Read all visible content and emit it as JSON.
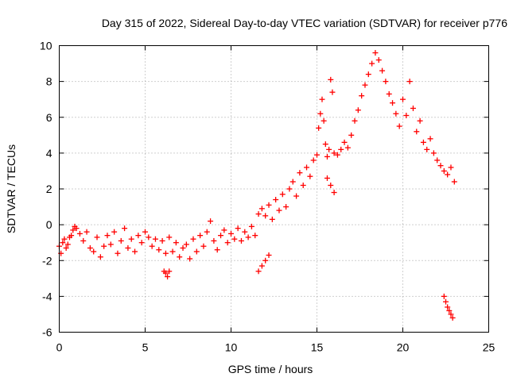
{
  "chart_data": {
    "type": "scatter",
    "title": "Day 315 of 2022, Sidereal Day-to-day VTEC variation (SDTVAR) for receiver p776",
    "xlabel": "GPS time / hours",
    "ylabel": "SDTVAR / TECUs",
    "xlim": [
      0,
      25
    ],
    "ylim": [
      -6,
      10
    ],
    "xticks": [
      0,
      5,
      10,
      15,
      20,
      25
    ],
    "yticks": [
      -6,
      -4,
      -2,
      0,
      2,
      4,
      6,
      8,
      10
    ],
    "xtick_labels": [
      "0",
      "5",
      "10",
      "15",
      "20",
      "25"
    ],
    "ytick_labels": [
      "-6",
      "-4",
      "-2",
      "0",
      "2",
      "4",
      "6",
      "8",
      "10"
    ],
    "grid": true,
    "marker": "+",
    "color": "#ff0000",
    "series": [
      {
        "name": "SDTVAR",
        "x": [
          0.0,
          0.1,
          0.2,
          0.3,
          0.4,
          0.5,
          0.6,
          0.7,
          0.8,
          0.9,
          1.0,
          1.2,
          1.4,
          1.6,
          1.8,
          2.0,
          2.2,
          2.4,
          2.6,
          2.8,
          3.0,
          3.2,
          3.4,
          3.6,
          3.8,
          4.0,
          4.2,
          4.4,
          4.6,
          4.8,
          5.0,
          5.2,
          5.4,
          5.6,
          5.8,
          6.0,
          6.2,
          6.4,
          6.6,
          6.8,
          7.0,
          7.2,
          7.4,
          7.6,
          7.8,
          8.0,
          8.2,
          8.4,
          8.6,
          8.8,
          9.0,
          9.2,
          9.4,
          9.6,
          9.8,
          10.0,
          10.2,
          10.4,
          10.6,
          10.8,
          11.0,
          11.2,
          11.4,
          11.6,
          11.8,
          12.0,
          12.2,
          12.4,
          12.6,
          12.8,
          13.0,
          13.2,
          13.4,
          13.6,
          13.8,
          14.0,
          14.2,
          14.4,
          14.6,
          14.8,
          15.0,
          15.1,
          15.2,
          15.3,
          15.4,
          15.5,
          15.6,
          15.7,
          15.8,
          15.9,
          16.0,
          16.2,
          16.4,
          16.6,
          16.8,
          17.0,
          17.2,
          17.4,
          17.6,
          17.8,
          18.0,
          18.2,
          18.4,
          18.6,
          18.8,
          19.0,
          19.2,
          19.4,
          19.6,
          19.8,
          20.0,
          20.2,
          20.4,
          20.6,
          20.8,
          21.0,
          21.2,
          21.4,
          21.6,
          21.8,
          22.0,
          22.2,
          22.4,
          22.6,
          22.8,
          23.0,
          6.1,
          6.2,
          6.3,
          6.4,
          11.6,
          11.8,
          12.0,
          12.2,
          22.4,
          22.5,
          22.6,
          22.7,
          22.8,
          22.9,
          15.6,
          15.8,
          16.0
        ],
        "y": [
          -1.2,
          -1.6,
          -1.0,
          -0.8,
          -1.3,
          -1.1,
          -0.7,
          -0.6,
          -0.3,
          -0.1,
          -0.2,
          -0.5,
          -0.9,
          -0.4,
          -1.3,
          -1.5,
          -0.7,
          -1.8,
          -1.2,
          -0.6,
          -1.1,
          -0.4,
          -1.6,
          -0.9,
          -0.2,
          -1.3,
          -0.8,
          -1.5,
          -0.6,
          -1.0,
          -0.4,
          -0.7,
          -1.2,
          -0.8,
          -1.4,
          -0.9,
          -1.6,
          -0.7,
          -1.5,
          -1.0,
          -1.8,
          -1.3,
          -1.1,
          -1.9,
          -0.8,
          -1.5,
          -0.6,
          -1.2,
          -0.4,
          0.2,
          -0.9,
          -1.4,
          -0.6,
          -0.3,
          -1.0,
          -0.5,
          -0.8,
          -0.2,
          -0.9,
          -0.4,
          -0.7,
          -0.1,
          -0.6,
          0.6,
          0.9,
          0.5,
          1.1,
          0.3,
          1.4,
          0.8,
          1.7,
          1.0,
          2.0,
          2.4,
          1.6,
          2.9,
          2.2,
          3.2,
          2.7,
          3.6,
          3.9,
          5.4,
          6.2,
          7.0,
          5.8,
          4.5,
          3.8,
          4.2,
          8.1,
          7.4,
          4.0,
          3.9,
          4.2,
          4.6,
          4.3,
          5.0,
          5.8,
          6.4,
          7.2,
          7.8,
          8.4,
          9.0,
          9.6,
          9.2,
          8.6,
          8.0,
          7.3,
          6.8,
          6.2,
          5.5,
          7.0,
          6.1,
          8.0,
          6.5,
          5.2,
          5.8,
          4.6,
          4.2,
          4.8,
          4.0,
          3.6,
          3.3,
          3.0,
          2.8,
          3.2,
          2.4,
          -2.6,
          -2.7,
          -2.9,
          -2.6,
          -2.6,
          -2.3,
          -2.0,
          -1.7,
          -4.0,
          -4.3,
          -4.6,
          -4.8,
          -5.0,
          -5.2,
          2.6,
          2.2,
          1.8
        ]
      }
    ]
  }
}
